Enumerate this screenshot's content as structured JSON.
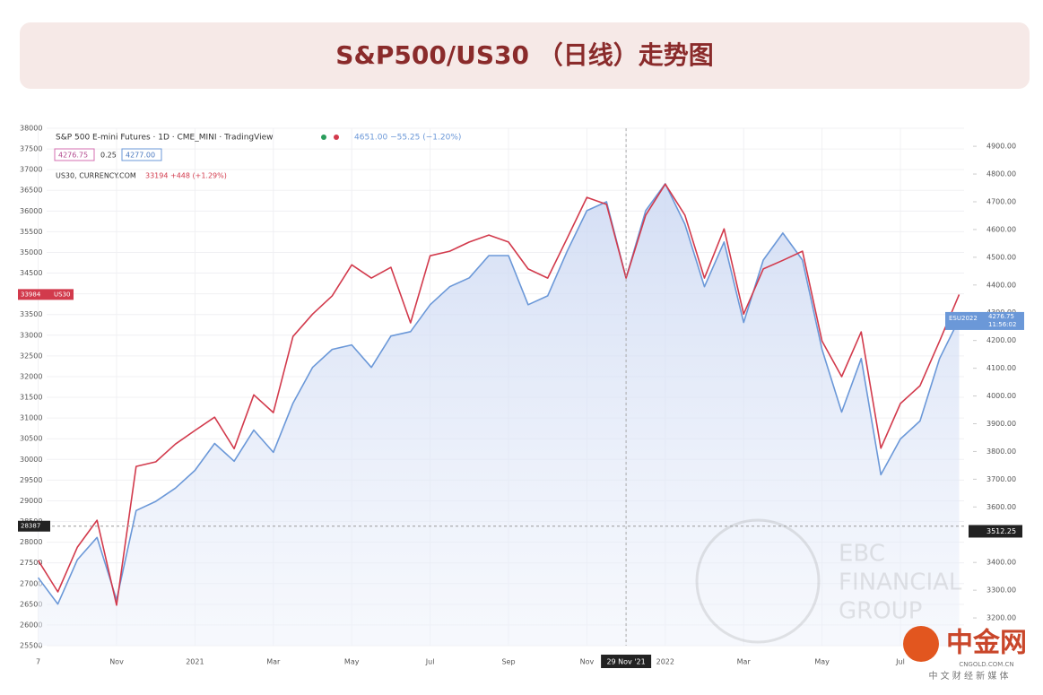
{
  "chart_data": {
    "type": "line",
    "title": "S&P500/US30 （日线）走势图",
    "categories": [
      "7",
      null,
      null,
      null,
      "Nov",
      null,
      null,
      null,
      "2021",
      null,
      null,
      null,
      "Mar",
      null,
      null,
      null,
      "May",
      null,
      null,
      null,
      "Jul",
      null,
      null,
      null,
      "Sep",
      null,
      null,
      null,
      "Nov",
      null,
      "29 Nov '21",
      null,
      "2022",
      null,
      null,
      null,
      "Mar",
      null,
      null,
      null,
      "May",
      null,
      null,
      null,
      "Jul",
      null,
      null,
      null
    ],
    "series": [
      {
        "name": "US30, CURRENCY.COM",
        "color": "#d23a4c",
        "axis": "y",
        "values": [
          27560,
          26800,
          27880,
          28530,
          26480,
          29830,
          29940,
          30370,
          30700,
          31020,
          30260,
          31560,
          31130,
          32970,
          33510,
          33950,
          34700,
          34380,
          34640,
          33300,
          34920,
          35030,
          35250,
          35420,
          35250,
          34600,
          34380,
          35350,
          36330,
          36160,
          34380,
          35900,
          36650,
          35900,
          34380,
          35570,
          33510,
          34600,
          34810,
          35030,
          32860,
          32000,
          33080,
          30270,
          31350,
          31780,
          32860,
          33984
        ],
        "price_tag": {
          "value": 33984,
          "tag": "US30"
        }
      },
      {
        "name": "S&P 500 E-mini Futures · 1D · CME_MINI · TradingView",
        "color": "#6b98d8",
        "axis": "y2",
        "values": [
          3345,
          3250,
          3410,
          3490,
          3265,
          3587,
          3620,
          3668,
          3732,
          3829,
          3765,
          3877,
          3797,
          3974,
          4103,
          4168,
          4184,
          4103,
          4216,
          4232,
          4329,
          4394,
          4426,
          4506,
          4506,
          4329,
          4361,
          4523,
          4668,
          4700,
          4426,
          4668,
          4765,
          4619,
          4394,
          4555,
          4265,
          4490,
          4587,
          4490,
          4168,
          3942,
          4135,
          3716,
          3845,
          3910,
          4135,
          4276.75
        ],
        "price_tag": {
          "value": 4276.75,
          "tag": "ESU2022",
          "time": "11:56:02"
        }
      }
    ],
    "ylim": [
      25500,
      38000
    ],
    "yticks": [
      25500,
      26000,
      26500,
      27000,
      27500,
      28000,
      28500,
      29000,
      29500,
      30000,
      30500,
      31000,
      31500,
      32000,
      32500,
      33000,
      33500,
      34000,
      34500,
      35000,
      35500,
      36000,
      36500,
      37000,
      37500,
      38000
    ],
    "y2lim": [
      3100,
      4965
    ],
    "y2ticks": [
      {
        "value": 3200,
        "label": "3200.00"
      },
      {
        "value": 3300,
        "label": "3300.00"
      },
      {
        "value": 3400,
        "label": "3400.00"
      },
      {
        "value": 3500,
        "label": "3500.00"
      },
      {
        "value": 3600,
        "label": "3600.00"
      },
      {
        "value": 3700,
        "label": "3700.00"
      },
      {
        "value": 3800,
        "label": "3800.00"
      },
      {
        "value": 3900,
        "label": "3900.00"
      },
      {
        "value": 4000,
        "label": "4000.00"
      },
      {
        "value": 4100,
        "label": "4100.00"
      },
      {
        "value": 4200,
        "label": "4200.00"
      },
      {
        "value": 4300,
        "label": "4300.00"
      },
      {
        "value": 4400,
        "label": "4400.00"
      },
      {
        "value": 4500,
        "label": "4500.00"
      },
      {
        "value": 4600,
        "label": "4600.00"
      },
      {
        "value": 4700,
        "label": "4700.00"
      },
      {
        "value": 4800,
        "label": "4800.00"
      },
      {
        "value": 4900,
        "label": "4900.00"
      }
    ],
    "grid": true,
    "crosshair": {
      "y": 28387,
      "y2": 3512.25
    },
    "legend_header": {
      "sp_quote": "4651.00 −55.25 (−1.20%)",
      "bid": "4276.75",
      "spread": "0.25",
      "ask": "4277.00",
      "us30_quote": "33194 +448 (+1.29%)"
    }
  },
  "watermark": {
    "lines": [
      "EBC",
      "FINANCIAL",
      "GROUP"
    ]
  },
  "logo": {
    "name": "中金网",
    "site": "CNGOLD.COM.CN",
    "tagline": "中 文 财 经 新 媒 体"
  }
}
